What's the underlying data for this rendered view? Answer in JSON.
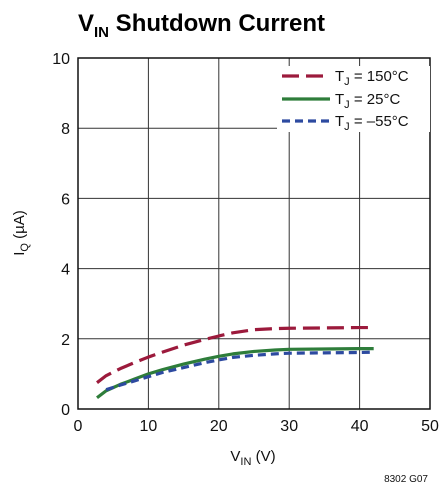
{
  "chart_data": {
    "type": "line",
    "title": {
      "main": "V",
      "sub": "IN",
      "rest": " Shutdown Current"
    },
    "xlabel": {
      "main": "V",
      "sub": "IN",
      "rest": " (V)"
    },
    "ylabel": {
      "main": "I",
      "sub": "Q",
      "rest": " (µA)"
    },
    "xlim": [
      0,
      50
    ],
    "ylim": [
      0,
      10
    ],
    "xticks": [
      0,
      10,
      20,
      30,
      40,
      50
    ],
    "yticks": [
      0,
      2,
      4,
      6,
      8,
      10
    ],
    "xtick_labels": [
      "0",
      "10",
      "20",
      "30",
      "40",
      "50"
    ],
    "ytick_labels": [
      "0",
      "2",
      "4",
      "6",
      "8",
      "10"
    ],
    "grid": true,
    "legend_position": "top-right",
    "series": [
      {
        "name": {
          "main": "T",
          "sub": "J",
          "rest": " = 150°C"
        },
        "color": "#9c1a3c",
        "style": "long-dash",
        "x": [
          2.7,
          4,
          6,
          8,
          10,
          12,
          15,
          18,
          20,
          22,
          25,
          28,
          30,
          35,
          40,
          42
        ],
        "y": [
          0.75,
          0.95,
          1.15,
          1.32,
          1.48,
          1.62,
          1.82,
          1.98,
          2.08,
          2.17,
          2.26,
          2.29,
          2.3,
          2.31,
          2.32,
          2.32
        ]
      },
      {
        "name": {
          "main": "T",
          "sub": "J",
          "rest": " = 25°C"
        },
        "color": "#2e7d3a",
        "style": "solid",
        "x": [
          2.7,
          4,
          6,
          8,
          10,
          12,
          15,
          18,
          20,
          22,
          25,
          28,
          30,
          35,
          40,
          42
        ],
        "y": [
          0.32,
          0.52,
          0.7,
          0.85,
          1.0,
          1.12,
          1.28,
          1.42,
          1.5,
          1.57,
          1.64,
          1.68,
          1.7,
          1.71,
          1.72,
          1.72
        ]
      },
      {
        "name": {
          "main": "T",
          "sub": "J",
          "rest": " = –55°C"
        },
        "color": "#2d4aa0",
        "style": "short-dash",
        "x": [
          4,
          6,
          8,
          10,
          12,
          15,
          18,
          20,
          22,
          25,
          28,
          30,
          35,
          40,
          42
        ],
        "y": [
          0.55,
          0.68,
          0.8,
          0.92,
          1.04,
          1.18,
          1.32,
          1.4,
          1.47,
          1.53,
          1.57,
          1.59,
          1.6,
          1.61,
          1.62
        ]
      }
    ],
    "figure_id": "8302 G07"
  }
}
